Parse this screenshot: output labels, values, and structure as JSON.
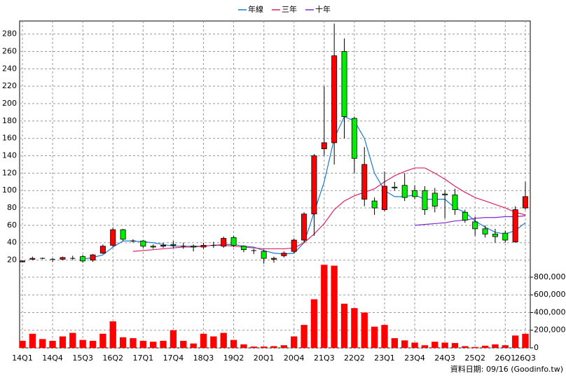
{
  "chart_data": {
    "type": "candlestick",
    "categories": [
      "14Q1",
      null,
      null,
      "14Q4",
      null,
      null,
      "15Q3",
      null,
      null,
      "16Q2",
      null,
      null,
      "17Q1",
      null,
      null,
      "17Q4",
      null,
      null,
      "18Q3",
      null,
      null,
      "19Q2",
      null,
      null,
      "20Q1",
      null,
      null,
      "20Q4",
      null,
      null,
      "21Q3",
      null,
      null,
      "22Q2",
      null,
      null,
      "23Q1",
      null,
      null,
      "23Q4",
      null,
      null,
      "24Q3",
      null,
      null,
      "25Q2",
      null,
      null,
      "26Q1",
      null,
      "26Q3"
    ],
    "open": [
      18,
      21,
      22,
      21,
      21,
      22,
      24,
      20,
      28,
      37,
      55,
      42,
      42,
      36,
      36,
      38,
      36,
      36,
      35,
      37,
      36,
      46,
      36,
      31,
      30,
      21,
      25,
      30,
      43,
      73,
      148,
      155,
      260,
      183,
      90,
      88,
      78,
      104,
      106,
      100,
      100,
      97,
      96,
      95,
      75,
      64,
      56,
      50,
      51,
      41,
      80
    ],
    "high": [
      20,
      24,
      23,
      22,
      24,
      25,
      26,
      27,
      38,
      57,
      56,
      44,
      43,
      38,
      40,
      42,
      40,
      38,
      40,
      41,
      47,
      48,
      37,
      33,
      32,
      24,
      30,
      45,
      75,
      142,
      220,
      292,
      275,
      185,
      150,
      92,
      122,
      110,
      120,
      106,
      105,
      103,
      100,
      102,
      78,
      70,
      60,
      56,
      54,
      82,
      110
    ],
    "low": [
      17,
      20,
      21,
      18,
      20,
      20,
      17,
      18,
      27,
      35,
      42,
      40,
      34,
      33,
      34,
      34,
      33,
      30,
      33,
      34,
      34,
      35,
      29,
      27,
      16,
      17,
      23,
      28,
      40,
      48,
      140,
      130,
      160,
      120,
      82,
      72,
      76,
      100,
      88,
      90,
      72,
      75,
      68,
      72,
      63,
      48,
      46,
      40,
      40,
      40,
      78
    ],
    "close": [
      19,
      22,
      22,
      21,
      23,
      22,
      19,
      26,
      36,
      55,
      44,
      42,
      36,
      35,
      37,
      37,
      36,
      35,
      37,
      37,
      45,
      37,
      32,
      31,
      22,
      22,
      28,
      43,
      73,
      140,
      155,
      255,
      185,
      137,
      130,
      80,
      105,
      103,
      92,
      93,
      78,
      82,
      95,
      78,
      66,
      56,
      50,
      47,
      43,
      78,
      93
    ],
    "up_color": "#ff0000",
    "down_color": "#00ee00",
    "ylim": [
      10,
      295
    ],
    "yticks": [
      20,
      40,
      60,
      80,
      100,
      120,
      140,
      160,
      180,
      200,
      220,
      240,
      260,
      280
    ],
    "series": [
      {
        "name": "年線",
        "color": "#1a7ad0",
        "values": [
          null,
          null,
          null,
          null,
          null,
          null,
          21,
          23,
          26,
          35,
          42,
          42,
          41,
          40,
          38,
          36,
          36,
          36,
          36,
          37,
          38,
          38,
          36,
          35,
          31,
          28,
          27,
          28,
          40,
          75,
          110,
          160,
          185,
          180,
          160,
          120,
          100,
          93,
          93,
          95,
          90,
          90,
          90,
          80,
          75,
          65,
          58,
          52,
          50,
          54,
          63
        ]
      },
      {
        "name": "三年",
        "color": "#e0206a",
        "values": [
          null,
          null,
          null,
          null,
          null,
          null,
          null,
          null,
          null,
          null,
          null,
          30,
          31,
          32,
          33,
          34,
          35,
          35,
          36,
          37,
          37,
          36,
          35,
          34,
          33,
          33,
          33,
          34,
          40,
          50,
          62,
          78,
          88,
          94,
          98,
          102,
          110,
          117,
          122,
          126,
          126,
          120,
          113,
          105,
          98,
          92,
          88,
          84,
          80,
          75,
          72
        ]
      },
      {
        "name": "十年",
        "color": "#7a2ad0",
        "values": [
          null,
          null,
          null,
          null,
          null,
          null,
          null,
          null,
          null,
          null,
          null,
          null,
          null,
          null,
          null,
          null,
          null,
          null,
          null,
          null,
          null,
          null,
          null,
          null,
          null,
          null,
          null,
          null,
          null,
          null,
          null,
          null,
          null,
          null,
          null,
          null,
          null,
          null,
          null,
          60,
          61,
          62,
          63,
          65,
          66,
          68,
          69,
          69,
          70,
          70,
          71
        ]
      }
    ],
    "volume": [
      80000,
      160000,
      100000,
      80000,
      130000,
      170000,
      90000,
      80000,
      160000,
      300000,
      120000,
      110000,
      80000,
      70000,
      80000,
      200000,
      80000,
      50000,
      160000,
      130000,
      170000,
      90000,
      40000,
      15000,
      15000,
      20000,
      30000,
      130000,
      260000,
      550000,
      940000,
      930000,
      500000,
      450000,
      400000,
      240000,
      260000,
      110000,
      85000,
      60000,
      30000,
      70000,
      60000,
      55000,
      20000,
      10000,
      25000,
      40000,
      30000,
      140000,
      160000
    ],
    "volume_color": "#ff0000",
    "y2lim": [
      0,
      950000
    ],
    "y2ticks": [
      0,
      {
        "value": 200000,
        "label": "200,000"
      },
      {
        "value": 400000,
        "label": "400,000"
      },
      {
        "value": 600000,
        "label": "600,000"
      },
      {
        "value": 800000,
        "label": "800,000"
      }
    ],
    "grid": true,
    "footnote": "資料日期: 09/16 (Goodinfo.tw)"
  }
}
